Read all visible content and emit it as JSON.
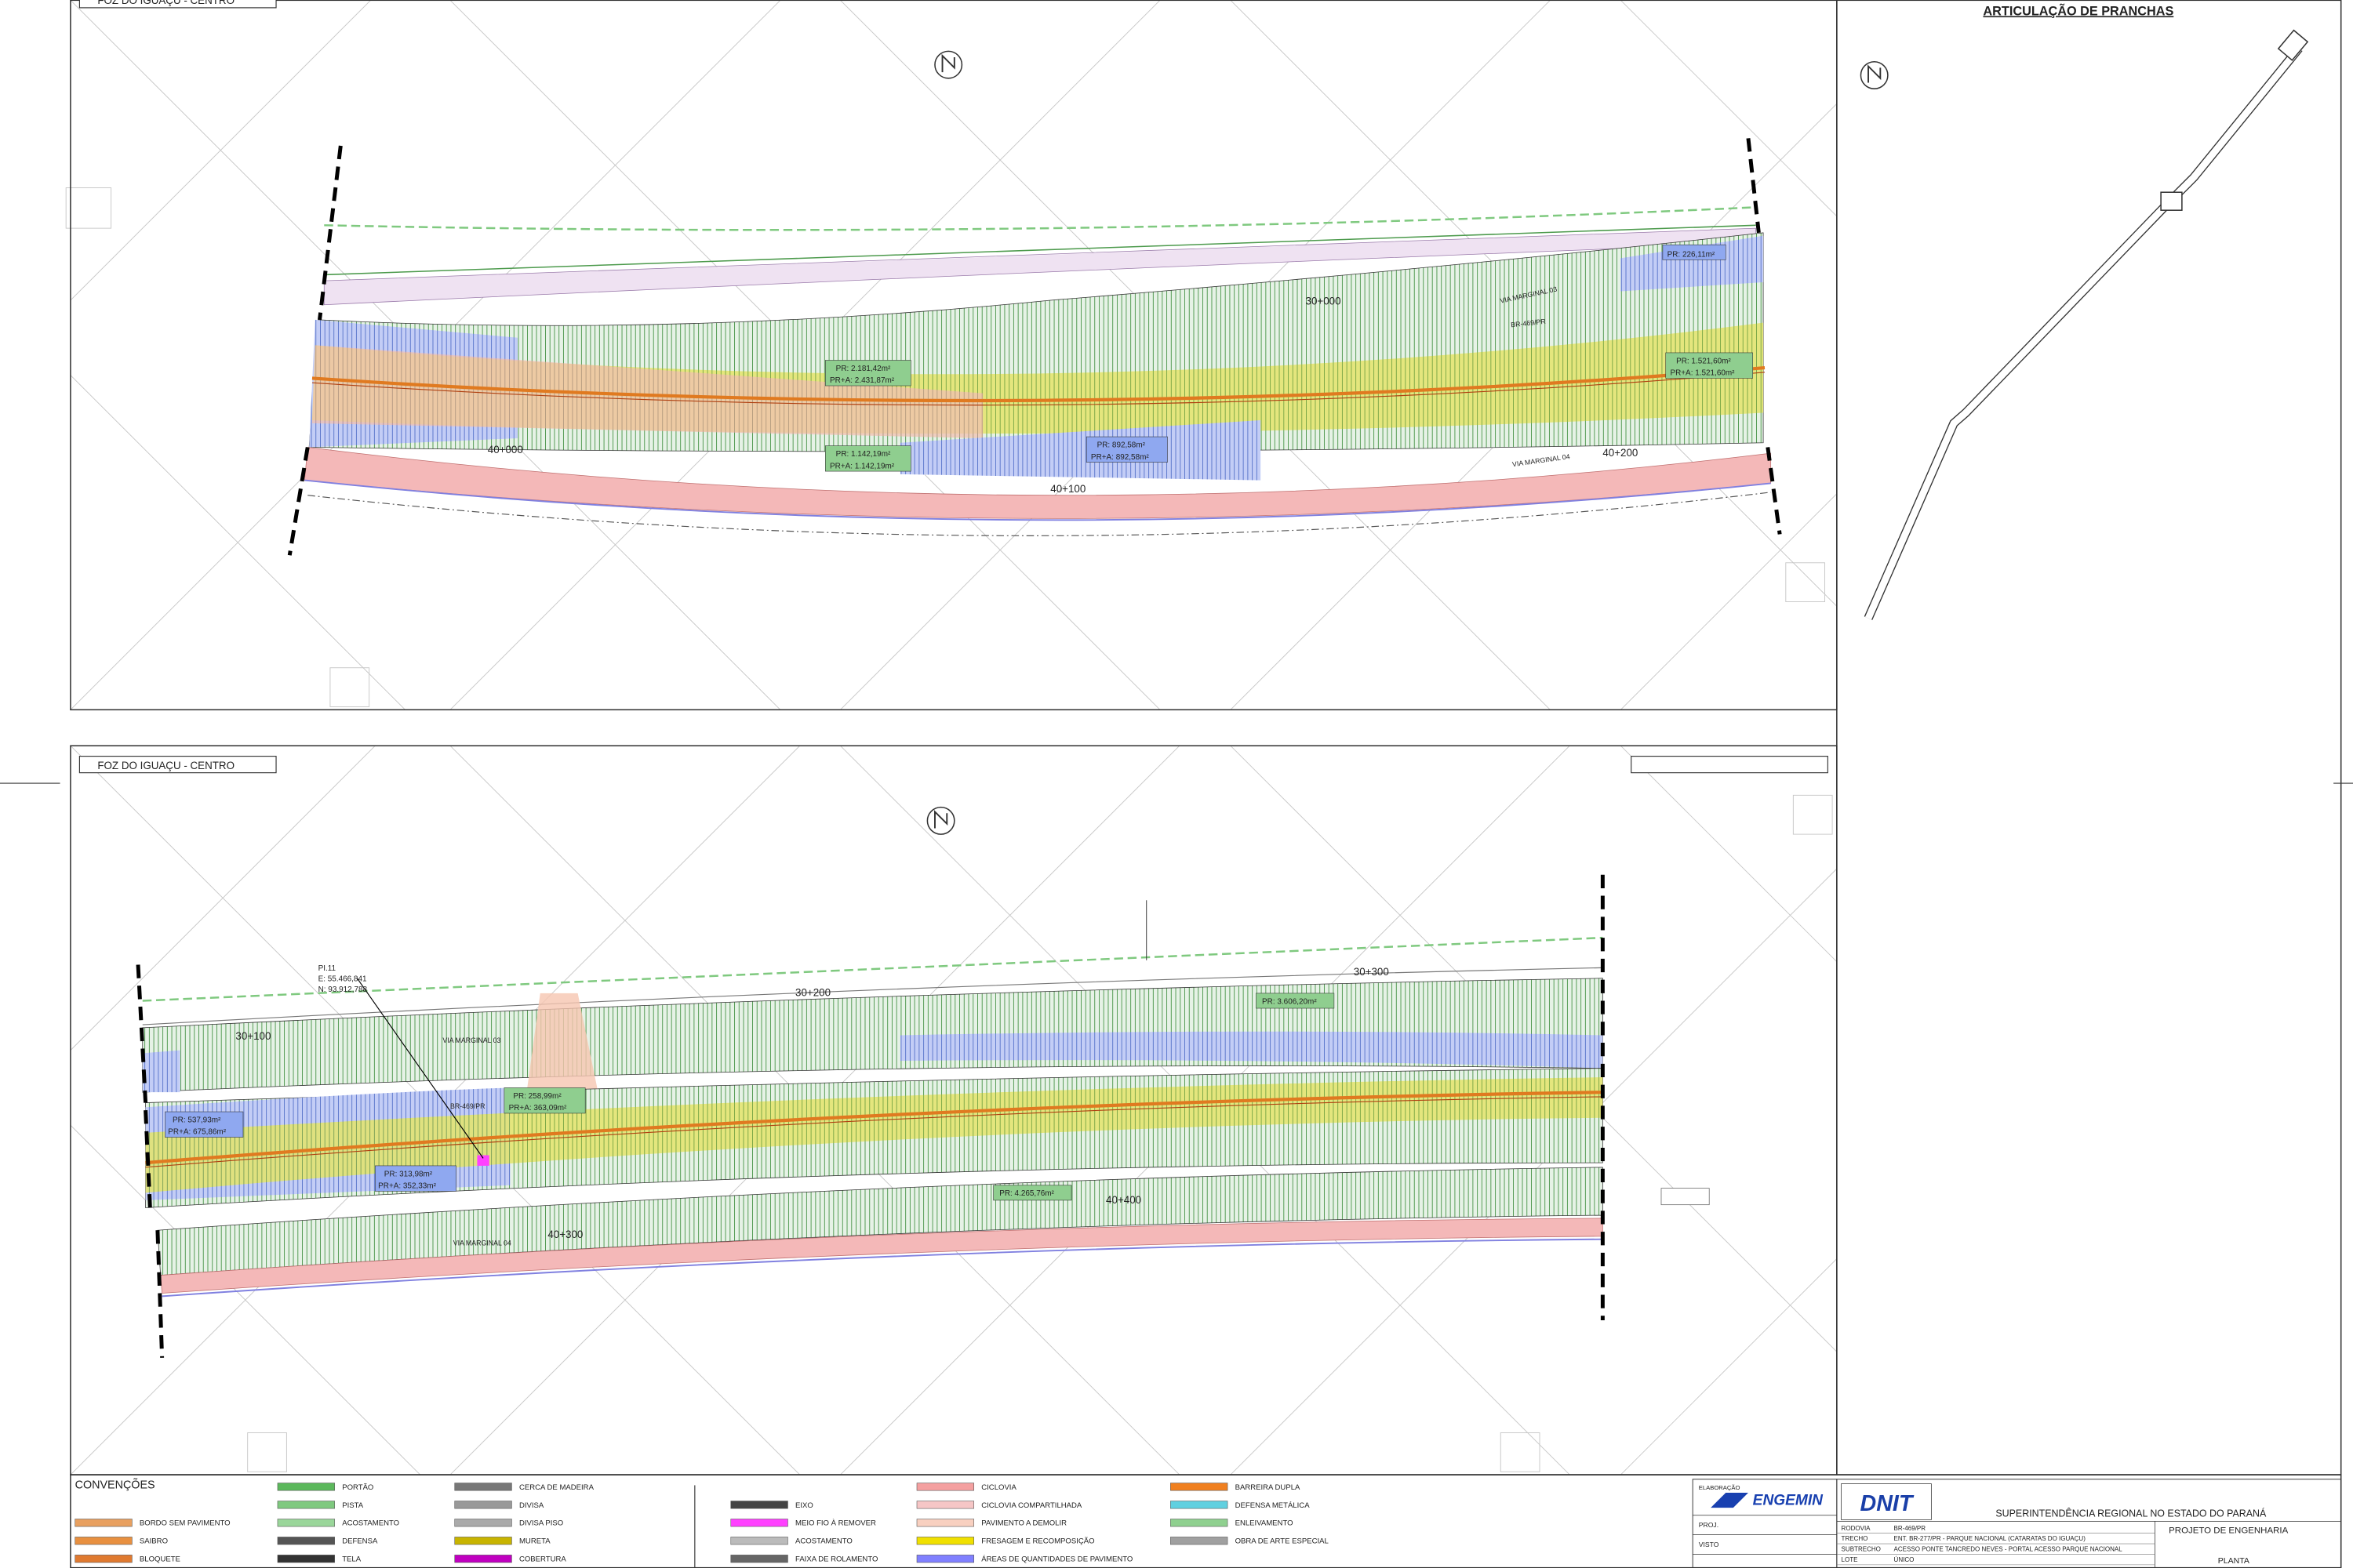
{
  "articulation": {
    "title": "ARTICULAÇÃO DE PRANCHAS"
  },
  "top_plan": {
    "direction": "FOZ DO IGUAÇU - CENTRO",
    "areas": [
      "PR: 226,11m²",
      "PR: 2.181,42m²",
      "PR+A: 2.431,87m²",
      "PR: 1.521,60m²",
      "PR+A: 1.521,60m²",
      "PR: 1.142,19m²",
      "PR+A: 1.142,19m²",
      "PR: 892,58m²",
      "PR+A: 892,58m²"
    ],
    "stations": [
      "30+000",
      "40+000",
      "40+100",
      "40+200"
    ],
    "roads": [
      "VIA MARGINAL 03",
      "BR-469/PR",
      "VIA MARGINAL 04"
    ]
  },
  "bottom_plan": {
    "direction": "FOZ DO IGUAÇU - CENTRO",
    "pi": [
      "PI.11",
      "E: 55.466,841",
      "N: 93.912,788"
    ],
    "areas": [
      "PR: 537,93m²",
      "PR+A: 675,86m²",
      "PR: 258,99m²",
      "PR+A: 363,09m²",
      "PR: 313,98m²",
      "PR+A: 352,33m²",
      "PR: 3.606,20m²",
      "PR: 4.265,76m²"
    ],
    "stations": [
      "30+100",
      "30+200",
      "30+300",
      "40+300",
      "40+400"
    ],
    "roads": [
      "VIA MARGINAL 03",
      "BR-469/PR",
      "VIA MARGINAL 04"
    ]
  },
  "legend": {
    "title": "CONVENÇÕES",
    "columns": [
      [
        {
          "label": "BORDO SEM PAVIMENTO",
          "color": "#e8a060"
        },
        {
          "label": "SAIBRO",
          "color": "#e89040"
        },
        {
          "label": "BLOQUETE",
          "color": "#e07a30"
        }
      ],
      [
        {
          "label": "PORTÃO",
          "color": "#5cb85c"
        },
        {
          "label": "PISTA",
          "color": "#7fc97f"
        },
        {
          "label": "ACOSTAMENTO",
          "color": "#9ad69a"
        },
        {
          "label": "DEFENSA",
          "color": "#555555"
        },
        {
          "label": "TELA",
          "color": "#333333"
        }
      ],
      [
        {
          "label": "CERCA DE MADEIRA",
          "color": "#777777"
        },
        {
          "label": "DIVISA",
          "color": "#999999"
        },
        {
          "label": "DIVISA PISO",
          "color": "#aaaaaa"
        },
        {
          "label": "MURETA",
          "color": "#c8b400"
        },
        {
          "label": "COBERTURA",
          "color": "#c000c0"
        }
      ],
      [
        {
          "label": "EIXO",
          "color": "#444444"
        },
        {
          "label": "MEIO FIO À REMOVER",
          "color": "#ff40ff"
        },
        {
          "label": "ACOSTAMENTO",
          "color": "#bbbbbb"
        },
        {
          "label": "FAIXA DE ROLAMENTO",
          "color": "#666666"
        }
      ],
      [
        {
          "label": "CICLOVIA",
          "color": "#f4a0a0"
        },
        {
          "label": "CICLOVIA COMPARTILHADA",
          "color": "#f6c6c6"
        },
        {
          "label": "PAVIMENTO A DEMOLIR",
          "color": "#f8d0c0"
        },
        {
          "label": "FRESAGEM E RECOMPOSIÇÃO",
          "color": "#f0e000"
        },
        {
          "label": "ÁREAS DE QUANTIDADES DE PAVIMENTO",
          "color": "#8080ff"
        }
      ],
      [
        {
          "label": "BARREIRA DUPLA",
          "color": "#f08020"
        },
        {
          "label": "DEFENSA METÁLICA",
          "color": "#60d0e0"
        },
        {
          "label": "ENLEIVAMENTO",
          "color": "#8fd08f"
        },
        {
          "label": "OBRA DE ARTE ESPECIAL",
          "color": "#a0a0a0"
        }
      ]
    ]
  },
  "title_block": {
    "elaboration": "ELABORAÇÃO",
    "company": "ENGEMIN",
    "agency": "DNIT",
    "superintendence": "SUPERINTENDÊNCIA REGIONAL NO ESTADO DO PARANÁ",
    "project": "PROJETO DE ENGENHARIA",
    "fields": [
      [
        "RODOVIA",
        "BR-469/PR"
      ],
      [
        "TRECHO",
        "ENT. BR-277/PR - PARQUE NACIONAL (CATARATAS DO IGUAÇU)"
      ],
      [
        "SUBTRECHO",
        "ACESSO PONTE TANCREDO NEVES - PORTAL ACESSO PARQUE NACIONAL"
      ],
      [
        "LOTE",
        "ÚNICO"
      ]
    ],
    "roles": [
      "PROJ.",
      "VISTO"
    ],
    "sheet": "PLANTA"
  }
}
